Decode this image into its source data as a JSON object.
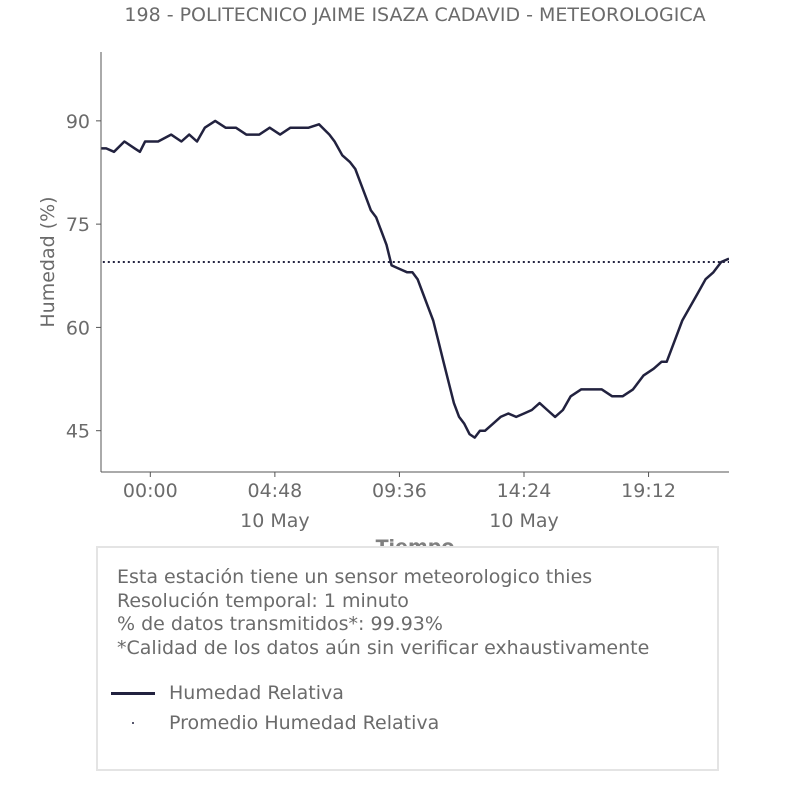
{
  "chart_data": {
    "type": "line",
    "title": "198 - POLITECNICO JAIME ISAZA CADAVID - METEOROLOGICA",
    "xlabel": "Tiempo",
    "ylabel": "Humedad (%)",
    "ylim": [
      39,
      100
    ],
    "xlim": [
      -1.9,
      22.3
    ],
    "y_ticks": [
      45,
      60,
      75,
      90
    ],
    "x_ticks": [
      {
        "x": 0.0,
        "label": "00:00",
        "sublabel": ""
      },
      {
        "x": 4.8,
        "label": "04:48",
        "sublabel": "10 May"
      },
      {
        "x": 9.6,
        "label": "09:36",
        "sublabel": ""
      },
      {
        "x": 14.4,
        "label": "14:24",
        "sublabel": "10 May"
      },
      {
        "x": 19.2,
        "label": "19:12",
        "sublabel": ""
      }
    ],
    "grid": false,
    "series": [
      {
        "name": "Humedad Relativa",
        "color": "#22223f",
        "style": "solid",
        "x": [
          -2.6,
          -2.4,
          -2.0,
          -1.7,
          -1.4,
          -1.0,
          -0.6,
          -0.4,
          -0.2,
          0.3,
          0.8,
          1.2,
          1.5,
          1.8,
          2.1,
          2.5,
          2.9,
          3.3,
          3.7,
          4.2,
          4.6,
          5.0,
          5.4,
          5.8,
          6.1,
          6.5,
          6.9,
          7.1,
          7.4,
          7.7,
          7.9,
          8.1,
          8.3,
          8.5,
          8.7,
          8.9,
          9.1,
          9.3,
          9.6,
          9.9,
          10.1,
          10.3,
          10.5,
          10.7,
          10.9,
          11.1,
          11.3,
          11.5,
          11.7,
          11.9,
          12.1,
          12.3,
          12.5,
          12.7,
          12.9,
          13.2,
          13.5,
          13.8,
          14.1,
          14.4,
          14.7,
          15.0,
          15.3,
          15.6,
          15.9,
          16.2,
          16.6,
          17.0,
          17.4,
          17.8,
          18.2,
          18.6,
          19.0,
          19.4,
          19.7,
          19.9,
          20.2,
          20.5,
          20.8,
          21.1,
          21.4,
          21.7,
          22.0,
          22.3
        ],
        "values": [
          86,
          85,
          86,
          86,
          85.5,
          87,
          86,
          85.5,
          87,
          87,
          88,
          87,
          88,
          87,
          89,
          90,
          89,
          89,
          88,
          88,
          89,
          88,
          89,
          89,
          89,
          89.5,
          88,
          87,
          85,
          84,
          83,
          81,
          79,
          77,
          76,
          74,
          72,
          69,
          68.5,
          68,
          68,
          67,
          65,
          63,
          61,
          58,
          55,
          52,
          49,
          47,
          46,
          44.5,
          44,
          45,
          45,
          46,
          47,
          47.5,
          47,
          47.5,
          48,
          49,
          48,
          47,
          48,
          50,
          51,
          51,
          51,
          50,
          50,
          51,
          53,
          54,
          55,
          55,
          58,
          61,
          63,
          65,
          67,
          68,
          69.5,
          70
        ]
      },
      {
        "name": "Promedio Humedad Relativa",
        "color": "#22223f",
        "style": "dotted",
        "x": [
          -2.6,
          22.3
        ],
        "values": [
          69.5,
          69.5
        ]
      }
    ]
  },
  "info": {
    "lines": [
      "Esta estación tiene un sensor meteorologico thies",
      "Resolución temporal: 1 minuto",
      "% de datos transmitidos*: 99.93%",
      "*Calidad de los datos aún sin verificar exhaustivamente"
    ]
  }
}
